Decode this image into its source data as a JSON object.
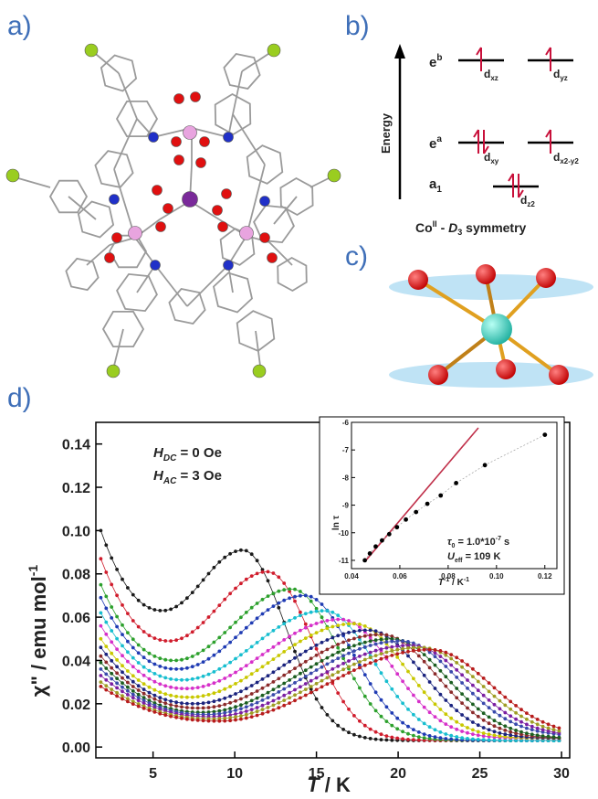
{
  "panels": {
    "a": "a)",
    "b": "b)",
    "c": "c)",
    "d": "d)"
  },
  "energy_diagram": {
    "axis_label": "Energy",
    "levels": [
      {
        "name_main": "e",
        "name_sup": "b",
        "orbitals": [
          {
            "main": "d",
            "sub": "xz",
            "electrons": 1
          },
          {
            "main": "d",
            "sub": "yz",
            "electrons": 1
          }
        ]
      },
      {
        "name_main": "e",
        "name_sup": "a",
        "orbitals": [
          {
            "main": "d",
            "sub": "xy",
            "electrons": 2
          },
          {
            "main": "d",
            "sub": "x2-y2",
            "electrons": 1
          }
        ]
      },
      {
        "name_main": "a",
        "name_sub": "1",
        "orbitals": [
          {
            "main": "d",
            "sub": "z2",
            "electrons": 2
          }
        ]
      }
    ],
    "caption_main": "Co",
    "caption_sup": "II",
    "caption_mid": " - ",
    "caption_sym": "D",
    "caption_sym_sub": "3",
    "caption_end": " symmetry",
    "colors": {
      "levels": "#000000",
      "electrons": "#c8103a"
    }
  },
  "colors": {
    "panel_letters": "#3f6fb8",
    "co_atom": "#e8a4df",
    "central_atom": "#7a2a9a",
    "oxygen": "#e01010",
    "nitrogen": "#2030c8",
    "halogen": "#9acd20",
    "bonds": "#9a9a9a",
    "geometry_center": "#3fd0c0",
    "geometry_bonds": "#e0a020",
    "geometry_planes": "#bfe3f5"
  },
  "chart_data": [
    {
      "type": "line",
      "title": "",
      "ylabel_main": "χ\" / emu mol",
      "ylabel_sup": "-1",
      "xlabel_main": "T",
      "xlabel_rest": " / K",
      "xlim": [
        1.5,
        30.5
      ],
      "ylim": [
        -0.005,
        0.15
      ],
      "xticks": [
        5,
        10,
        15,
        20,
        25,
        30
      ],
      "yticks": [
        0.0,
        0.02,
        0.04,
        0.06,
        0.08,
        0.1,
        0.12,
        0.14
      ],
      "ytick_labels": [
        "0.00",
        "0.02",
        "0.04",
        "0.06",
        "0.08",
        "0.10",
        "0.12",
        "0.14"
      ],
      "annotations": [
        {
          "main": "H",
          "sub": "DC",
          "rest": " = 0 Oe"
        },
        {
          "main": "H",
          "sub": "AC",
          "rest": " = 3 Oe"
        }
      ],
      "series": [
        {
          "color": "#1a1a1a",
          "start": 0.1,
          "min_x": 5.6,
          "min_y": 0.063,
          "peak_x": 10.5,
          "peak_y": 0.091,
          "end": 0.003
        },
        {
          "color": "#d01c2c",
          "start": 0.087,
          "min_x": 6.0,
          "min_y": 0.049,
          "peak_x": 12.0,
          "peak_y": 0.081,
          "end": 0.003
        },
        {
          "color": "#2ca02c",
          "start": 0.075,
          "min_x": 6.3,
          "min_y": 0.04,
          "peak_x": 13.5,
          "peak_y": 0.073,
          "end": 0.003
        },
        {
          "color": "#1f3bb3",
          "start": 0.069,
          "min_x": 6.5,
          "min_y": 0.036,
          "peak_x": 14.3,
          "peak_y": 0.07,
          "end": 0.003
        },
        {
          "color": "#17becf",
          "start": 0.062,
          "min_x": 6.8,
          "min_y": 0.031,
          "peak_x": 15.5,
          "peak_y": 0.063,
          "end": 0.003
        },
        {
          "color": "#d62fc9",
          "start": 0.056,
          "min_x": 7.0,
          "min_y": 0.027,
          "peak_x": 16.5,
          "peak_y": 0.059,
          "end": 0.004
        },
        {
          "color": "#c8c800",
          "start": 0.05,
          "min_x": 7.2,
          "min_y": 0.023,
          "peak_x": 17.3,
          "peak_y": 0.057,
          "end": 0.004
        },
        {
          "color": "#1a237e",
          "start": 0.046,
          "min_x": 7.5,
          "min_y": 0.02,
          "peak_x": 18.2,
          "peak_y": 0.054,
          "end": 0.004
        },
        {
          "color": "#8b2a2a",
          "start": 0.042,
          "min_x": 7.8,
          "min_y": 0.018,
          "peak_x": 19.0,
          "peak_y": 0.052,
          "end": 0.004
        },
        {
          "color": "#1b5e20",
          "start": 0.039,
          "min_x": 8.0,
          "min_y": 0.016,
          "peak_x": 19.6,
          "peak_y": 0.05,
          "end": 0.004
        },
        {
          "color": "#3949ab",
          "start": 0.036,
          "min_x": 8.2,
          "min_y": 0.015,
          "peak_x": 20.2,
          "peak_y": 0.049,
          "end": 0.005
        },
        {
          "color": "#7b1fa2",
          "start": 0.033,
          "min_x": 8.5,
          "min_y": 0.014,
          "peak_x": 20.8,
          "peak_y": 0.047,
          "end": 0.005
        },
        {
          "color": "#9e9d24",
          "start": 0.03,
          "min_x": 8.7,
          "min_y": 0.013,
          "peak_x": 21.4,
          "peak_y": 0.046,
          "end": 0.005
        },
        {
          "color": "#b71c1c",
          "start": 0.028,
          "min_x": 9.0,
          "min_y": 0.012,
          "peak_x": 22.0,
          "peak_y": 0.045,
          "end": 0.005
        }
      ]
    },
    {
      "type": "scatter",
      "title": "",
      "ylabel": "ln τ",
      "xlabel_main": "T",
      "xlabel_sup": "-1",
      "xlabel_rest": " / K",
      "xlabel_sup2": "-1",
      "xlim": [
        0.04,
        0.125
      ],
      "ylim": [
        -11.3,
        -6.0
      ],
      "xticks": [
        0.04,
        0.06,
        0.08,
        0.1,
        0.12
      ],
      "xtick_labels": [
        "0.04",
        "0.06",
        "0.08",
        "0.10",
        "0.12"
      ],
      "yticks": [
        -11,
        -10,
        -9,
        -8,
        -7,
        -6
      ],
      "ytick_labels": [
        "-11",
        "-10",
        "-9",
        "-8",
        "-7",
        "-6"
      ],
      "points": [
        [
          0.0455,
          -11.0
        ],
        [
          0.0476,
          -10.75
        ],
        [
          0.05,
          -10.5
        ],
        [
          0.0526,
          -10.28
        ],
        [
          0.0556,
          -10.05
        ],
        [
          0.0588,
          -9.8
        ],
        [
          0.0625,
          -9.52
        ],
        [
          0.0667,
          -9.25
        ],
        [
          0.0714,
          -8.95
        ],
        [
          0.0769,
          -8.65
        ],
        [
          0.0833,
          -8.2
        ],
        [
          0.0952,
          -7.55
        ],
        [
          0.12,
          -6.45
        ]
      ],
      "fit_line": {
        "x": [
          0.0455,
          0.0925
        ],
        "y": [
          -11.05,
          -6.2
        ],
        "color": "#c0304a"
      },
      "params": [
        {
          "main": "τ",
          "sub": "0",
          "rest": " = 1.0*10",
          "sup": "-7",
          "end": " s"
        },
        {
          "main": "U",
          "sub": "eff",
          "rest": " = 109 K"
        }
      ]
    }
  ]
}
